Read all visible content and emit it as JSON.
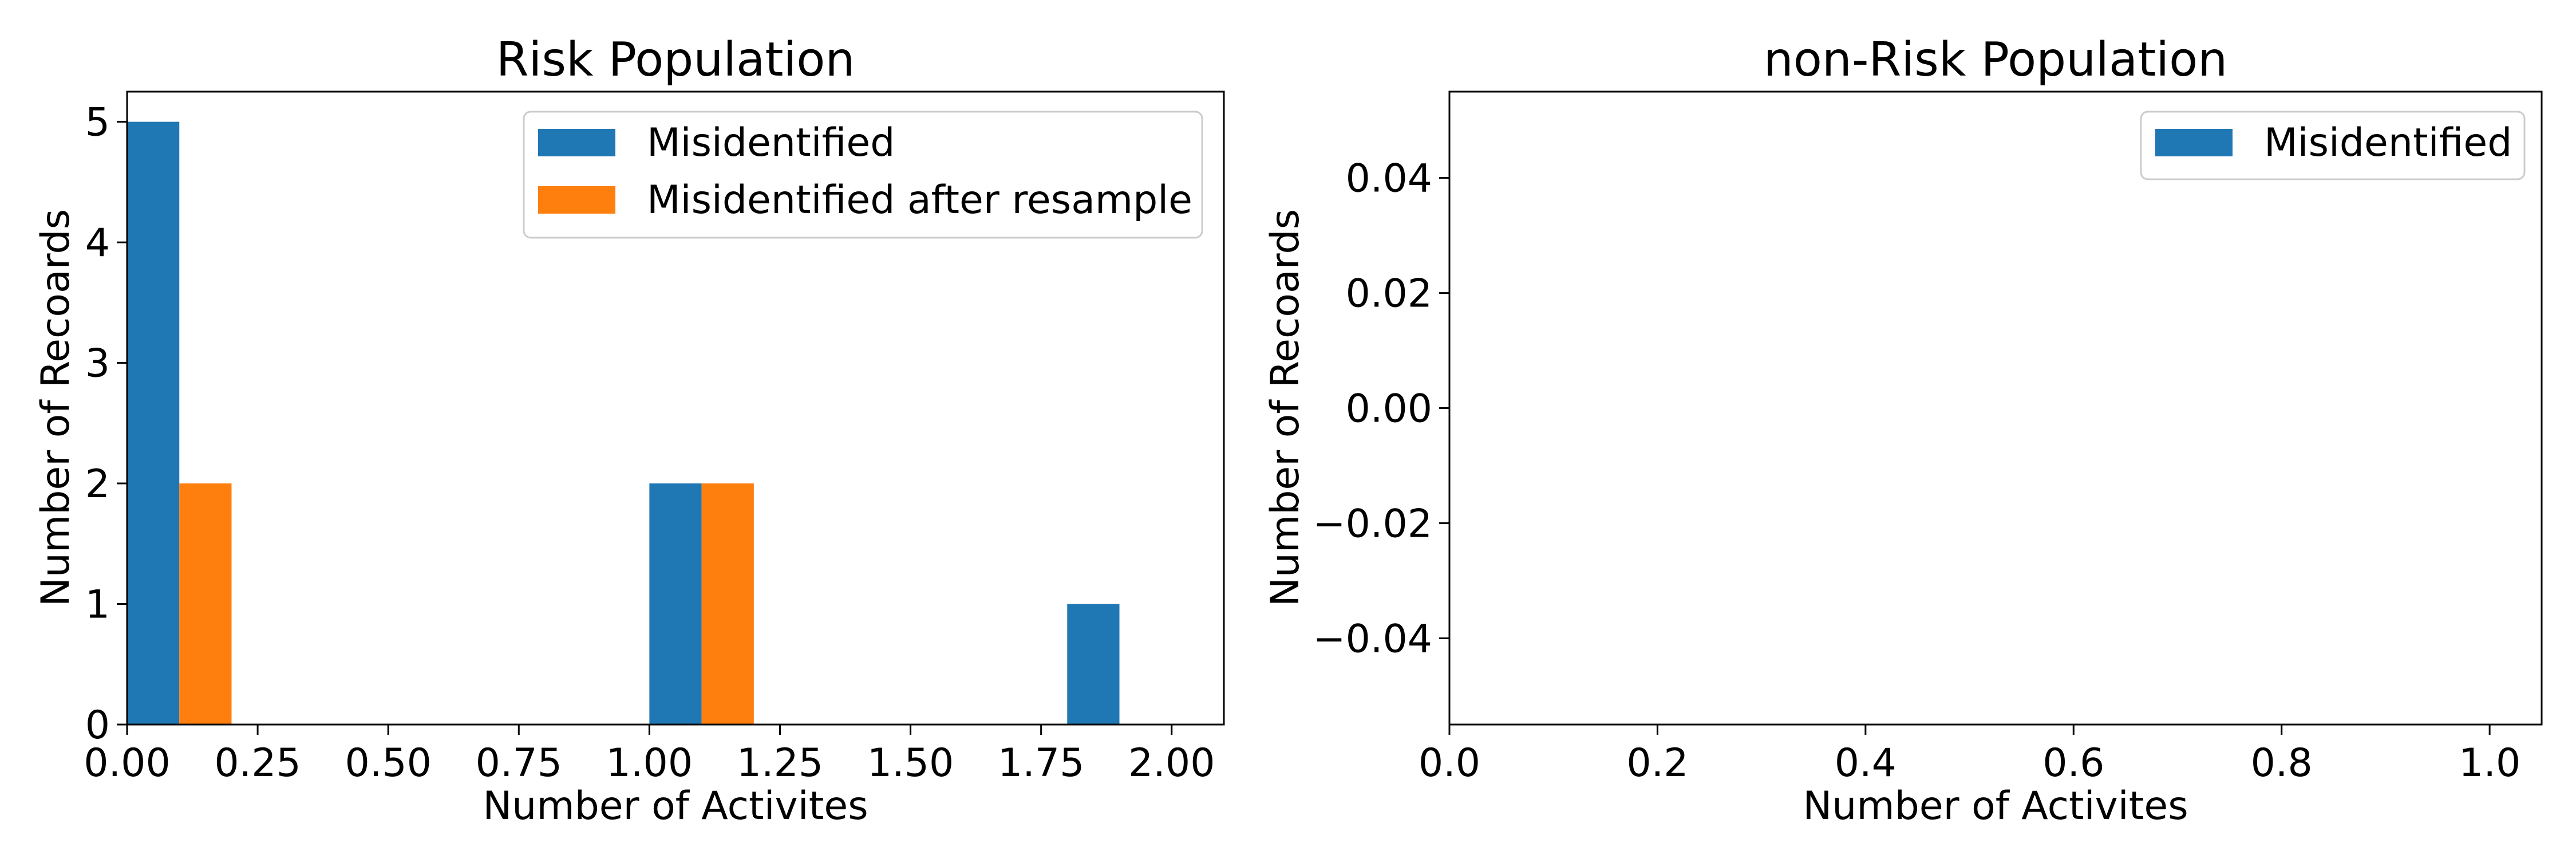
{
  "chart_data": [
    {
      "type": "bar",
      "title": "Risk Population",
      "xlabel": "Number of Activites",
      "ylabel": "Number of Recoards",
      "xlim": [
        0.0,
        2.1
      ],
      "ylim": [
        0,
        5.25
      ],
      "grid": false,
      "legend_position": "top-right",
      "xticks": [
        "0.00",
        "0.25",
        "0.50",
        "0.75",
        "1.00",
        "1.25",
        "1.50",
        "1.75",
        "2.00"
      ],
      "yticks": [
        "0",
        "1",
        "2",
        "3",
        "4",
        "5"
      ],
      "series": [
        {
          "name": "Misidentified",
          "color": "#1f77b4",
          "bars": [
            {
              "x0": 0.0,
              "x1": 0.1,
              "value": 5
            },
            {
              "x0": 1.0,
              "x1": 1.1,
              "value": 2
            },
            {
              "x0": 1.8,
              "x1": 1.9,
              "value": 1
            }
          ]
        },
        {
          "name": "Misidentified after resample",
          "color": "#ff7f0e",
          "bars": [
            {
              "x0": 0.1,
              "x1": 0.2,
              "value": 2
            },
            {
              "x0": 1.1,
              "x1": 1.2,
              "value": 2
            }
          ]
        }
      ]
    },
    {
      "type": "bar",
      "title": "non-Risk Population",
      "xlabel": "Number of Activites",
      "ylabel": "Number of Recoards",
      "xlim": [
        0.0,
        1.05
      ],
      "ylim": [
        -0.055,
        0.055
      ],
      "grid": false,
      "legend_position": "top-right",
      "xticks": [
        "0.0",
        "0.2",
        "0.4",
        "0.6",
        "0.8",
        "1.0"
      ],
      "yticks": [
        "0.04",
        "0.02",
        "0.00",
        "−0.02",
        "−0.04"
      ],
      "series": [
        {
          "name": "Misidentified",
          "color": "#1f77b4",
          "bars": []
        }
      ]
    }
  ]
}
